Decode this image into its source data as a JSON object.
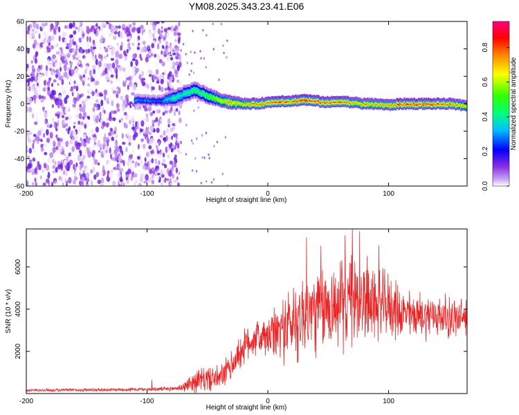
{
  "title": "YM08.2025.343.23.41.E06",
  "chart_data": [
    {
      "type": "heatmap",
      "xlabel": "Height of straight line (km)",
      "ylabel": "Frequency (Hz)",
      "xlim": [
        -200,
        165
      ],
      "ylim": [
        -60,
        60
      ],
      "x_ticks": [
        -200,
        -100,
        0,
        100
      ],
      "x_tick_labels": [
        "-200",
        "-100",
        "0",
        "100"
      ],
      "y_ticks": [
        60,
        40,
        20,
        0,
        -20,
        -40,
        -60
      ],
      "y_tick_labels": [
        "60",
        "40",
        "20",
        "0",
        "-20",
        "-40",
        "-60"
      ],
      "colorbar": {
        "label": "Normalized spectral amplitude",
        "range": [
          0,
          0.95
        ],
        "ticks": [
          0.0,
          0.2,
          0.4,
          0.6,
          0.8
        ],
        "tick_labels": [
          "0.0",
          "0.2",
          "0.4",
          "0.6",
          "0.8"
        ],
        "colormap": [
          "#ffffff",
          "#8a2be2",
          "#0000ff",
          "#00ffff",
          "#00ff00",
          "#ffff00",
          "#ff0000",
          "#ff00ff"
        ]
      },
      "noise_region_x": [
        -200,
        -72
      ],
      "noise_amplitude_range": [
        0.0,
        0.3
      ],
      "signal_band": {
        "x": [
          -110,
          -90,
          -78,
          -70,
          -60,
          -50,
          -40,
          -30,
          -20,
          -10,
          0,
          10,
          20,
          30,
          40,
          50,
          60,
          70,
          80,
          90,
          100,
          110,
          120,
          130,
          140,
          150,
          160,
          165
        ],
        "center_freq": [
          3,
          2,
          4,
          7,
          10,
          6,
          3,
          1,
          0,
          0,
          1,
          2,
          2,
          3,
          2,
          1,
          2,
          1,
          0,
          0,
          -1,
          0,
          0,
          0,
          0,
          0,
          -1,
          -1
        ],
        "peak_amplitude": [
          0.35,
          0.3,
          0.45,
          0.45,
          0.5,
          0.55,
          0.7,
          0.8,
          0.75,
          0.85,
          0.8,
          0.9,
          0.85,
          0.9,
          0.9,
          0.85,
          0.85,
          0.8,
          0.8,
          0.8,
          0.8,
          0.9,
          0.9,
          0.9,
          0.85,
          0.85,
          0.8,
          0.8
        ],
        "half_width_hz": [
          3,
          3,
          5,
          5,
          5,
          5,
          4,
          4,
          3,
          3,
          3,
          3,
          3,
          3,
          3,
          3,
          3,
          3,
          3,
          3,
          3,
          3,
          3,
          3,
          3,
          3,
          3,
          3
        ]
      }
    },
    {
      "type": "line",
      "xlabel": "Height of straight line (km)",
      "ylabel": "SNR (10 * v/v)",
      "xlim": [
        -200,
        165
      ],
      "ylim": [
        0,
        7800
      ],
      "x_ticks": [
        -200,
        -100,
        0,
        100
      ],
      "x_tick_labels": [
        "-200",
        "-100",
        "0",
        "100"
      ],
      "y_ticks": [
        2000,
        4000,
        6000
      ],
      "y_tick_labels": [
        "2000",
        "4000",
        "6000"
      ],
      "line_color": "#ee2222",
      "envelope": {
        "x": [
          -200,
          -150,
          -100,
          -80,
          -70,
          -60,
          -50,
          -40,
          -30,
          -20,
          -10,
          0,
          10,
          20,
          30,
          40,
          50,
          60,
          70,
          80,
          90,
          100,
          110,
          120,
          130,
          140,
          150,
          160,
          165
        ],
        "mean": [
          150,
          170,
          200,
          220,
          300,
          600,
          700,
          700,
          1300,
          2200,
          2700,
          2600,
          3000,
          3300,
          3800,
          3900,
          4100,
          4200,
          4400,
          4500,
          4200,
          4200,
          3800,
          3700,
          3700,
          3700,
          3600,
          3500,
          3700
        ],
        "spread": [
          80,
          90,
          100,
          120,
          250,
          700,
          700,
          700,
          900,
          1000,
          1100,
          1200,
          1700,
          2300,
          2500,
          2500,
          2400,
          2500,
          2600,
          2500,
          2000,
          1800,
          1500,
          1300,
          1300,
          1200,
          1200,
          1200,
          1200
        ]
      },
      "peaks": [
        {
          "x": 32,
          "y": 7400
        },
        {
          "x": 44,
          "y": 7000
        },
        {
          "x": 64,
          "y": 7500
        },
        {
          "x": 70,
          "y": 7800
        },
        {
          "x": 76,
          "y": 7700
        },
        {
          "x": 92,
          "y": 7000
        },
        {
          "x": -96,
          "y": 650
        }
      ]
    }
  ]
}
